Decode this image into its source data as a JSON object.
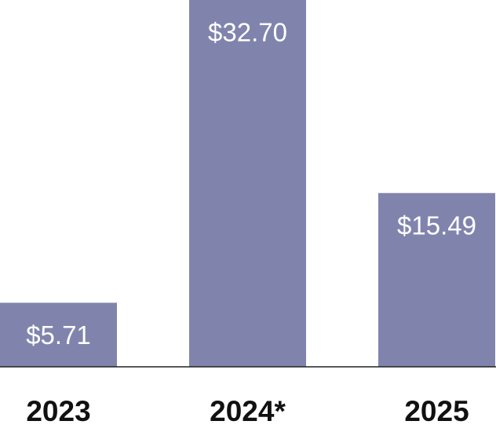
{
  "chart_data": {
    "type": "bar",
    "categories": [
      "2023",
      "2024*",
      "2025"
    ],
    "values": [
      5.71,
      32.7,
      15.49
    ],
    "value_labels": [
      "$5.71",
      "$32.70",
      "$15.49"
    ],
    "color": "#8084ad",
    "ylim": [
      0,
      32.7
    ]
  }
}
